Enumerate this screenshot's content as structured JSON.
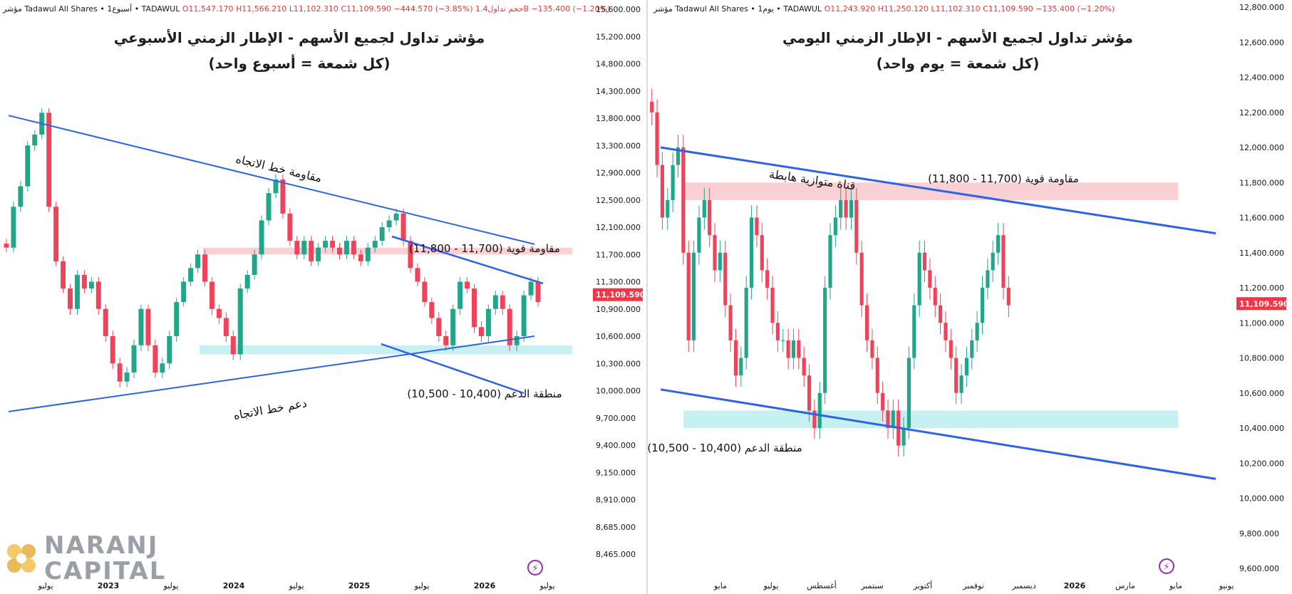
{
  "left": {
    "header": {
      "prefix": "مؤشر Tadawul All Shares • أسبوع1 • TADAWUL",
      "o": "O11,547.170",
      "h": "H11,566.210",
      "l": "L11,102.310",
      "c": "C11,109.590",
      "chg": "−444.570 (−3.85%)",
      "vol": "حجم تداول1.4B",
      "vol_chg": "−135.400 (−1.20%)"
    },
    "title_line1": "مؤشر تداول لجميع الأسهم - الإطار الزمني الأسبوعي",
    "title_line2": "(كل شمعة = أسبوع واحد)",
    "annotations": {
      "resistance_trend": "مقاومة خط الاتجاه",
      "support_trend": "دعم خط الاتجاه",
      "strong_resistance": "مقاومة قوية (11,700 - 11,800)",
      "support_zone": "منطقة الدعم (10,400 - 10,500)"
    },
    "price_label": "11,109.590",
    "x_labels": [
      "يوليو",
      "2023",
      "يوليو",
      "2024",
      "يوليو",
      "2025",
      "يوليو",
      "2026",
      "يوليو"
    ]
  },
  "right": {
    "header": {
      "prefix": "مؤشر Tadawul All Shares • يوم1 • TADAWUL",
      "o": "O11,243.920",
      "h": "H11,250.120",
      "l": "L11,102.310",
      "c": "C11,109.590",
      "chg": "−135.400 (−1.20%)"
    },
    "title_line1": "مؤشر تداول لجميع الأسهم - الإطار الزمني اليومي",
    "title_line2": "(كل شمعة = يوم واحد)",
    "annotations": {
      "channel": "قناة متوازية هابطة",
      "strong_resistance": "مقاومة قوية (11,700 - 11,800)",
      "support_zone": "منطقة الدعم (10,400 - 10,500)"
    },
    "price_label": "11,109.590",
    "x_labels": [
      "مايو",
      "يوليو",
      "أغسطس",
      "سبتمبر",
      "أكتوبر",
      "نوفمبر",
      "ديسمبر",
      "2026",
      "مارس",
      "مايو",
      "يونيو"
    ]
  },
  "logo": {
    "line1": "NARANJ",
    "line2": "CAPITAL"
  },
  "colors": {
    "up": "#22a68a",
    "down": "#f0435a",
    "trendline": "#2f63e6",
    "resistance_zone": "#f7c5cb",
    "support_zone": "#b9ecef",
    "price_label_bg": "#f23645"
  },
  "chart_data": [
    {
      "type": "candlestick",
      "title": "مؤشر تداول لجميع الأسهم - الإطار الزمني الأسبوعي",
      "subtitle": "(كل شمعة = أسبوع واحد)",
      "timeframe": "weekly",
      "y_ticks": [
        "15,600.000",
        "15,200.000",
        "14,800.000",
        "14,300.000",
        "13,800.000",
        "13,300.000",
        "12,900.000",
        "12,500.000",
        "12,100.000",
        "11,700.000",
        "11,300.000",
        "10,900.000",
        "10,600.000",
        "10,300.000",
        "10,000.000",
        "9,700.000",
        "9,400.000",
        "9,150.000",
        "8,910.000",
        "8,685.000",
        "8,465.000"
      ],
      "ylim": [
        8465,
        15600
      ],
      "last_price": 11109.59,
      "resistance_zone": [
        11700,
        11800
      ],
      "support_zone": [
        10400,
        10500
      ],
      "trendlines": [
        {
          "name": "resistance",
          "from": [
            0,
            13850
          ],
          "to": [
            1,
            11850
          ]
        },
        {
          "name": "support",
          "from": [
            0,
            9770
          ],
          "to": [
            1,
            10600
          ]
        }
      ],
      "approx_closes": [
        11800,
        12400,
        12700,
        13300,
        13500,
        13900,
        12400,
        11600,
        11200,
        10900,
        11400,
        11200,
        11300,
        10900,
        10600,
        10300,
        10100,
        10200,
        10500,
        10900,
        10500,
        10200,
        10300,
        10600,
        11000,
        11300,
        11500,
        11700,
        11300,
        10900,
        10800,
        10600,
        10400,
        11200,
        11400,
        11700,
        12200,
        12600,
        12800,
        12300,
        11900,
        11700,
        11900,
        11600,
        11800,
        11900,
        11800,
        11700,
        11900,
        11700,
        11600,
        11800,
        11900,
        12100,
        12200,
        12300,
        11900,
        11500,
        11300,
        11000,
        10800,
        10600,
        10500,
        10900,
        11300,
        11200,
        10700,
        10600,
        10900,
        11100,
        10900,
        10500,
        10600,
        11100,
        11300,
        11000
      ]
    },
    {
      "type": "candlestick",
      "title": "مؤشر تداول لجميع الأسهم - الإطار الزمني اليومي",
      "subtitle": "(كل شمعة = يوم واحد)",
      "timeframe": "daily",
      "y_ticks": [
        "12,800.000",
        "12,600.000",
        "12,400.000",
        "12,200.000",
        "12,000.000",
        "11,800.000",
        "11,600.000",
        "11,400.000",
        "11,200.000",
        "11,000.000",
        "10,800.000",
        "10,600.000",
        "10,400.000",
        "10,200.000",
        "10,000.000",
        "9,800.000",
        "9,600.000"
      ],
      "ylim": [
        9600,
        12800
      ],
      "last_price": 11109.59,
      "resistance_zone": [
        11700,
        11800
      ],
      "support_zone": [
        10400,
        10500
      ],
      "trendlines": [
        {
          "name": "channel_upper",
          "from": [
            0,
            12000
          ],
          "to": [
            1,
            11510
          ]
        },
        {
          "name": "channel_lower",
          "from": [
            0,
            10620
          ],
          "to": [
            1,
            10110
          ]
        }
      ],
      "approx_closes": [
        12200,
        11900,
        11600,
        11700,
        11900,
        12000,
        11400,
        10900,
        11400,
        11600,
        11700,
        11500,
        11300,
        11400,
        11100,
        10900,
        10700,
        10800,
        11200,
        11600,
        11500,
        11300,
        11200,
        11000,
        10900,
        10900,
        10800,
        10900,
        10800,
        10700,
        10500,
        10400,
        10600,
        11200,
        11500,
        11600,
        11700,
        11600,
        11700,
        11400,
        11100,
        10900,
        10800,
        10600,
        10500,
        10400,
        10500,
        10300,
        10400,
        10800,
        11100,
        11400,
        11300,
        11200,
        11100,
        11000,
        10900,
        10800,
        10600,
        10700,
        10800,
        10900,
        11000,
        11200,
        11300,
        11400,
        11500,
        11200,
        11100
      ]
    }
  ]
}
